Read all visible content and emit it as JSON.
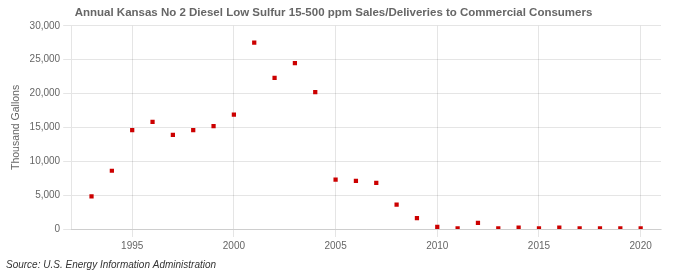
{
  "chart_data": {
    "type": "scatter",
    "title": "Annual Kansas No 2 Diesel Low Sulfur 15-500 ppm Sales/Deliveries to Commercial Consumers",
    "ylabel": "Thousand Gallons",
    "annotations": [
      "Source: U.S. Energy Information Administration"
    ],
    "x": [
      1993,
      1994,
      1995,
      1996,
      1997,
      1998,
      1999,
      2000,
      2001,
      2002,
      2003,
      2004,
      2005,
      2006,
      2007,
      2008,
      2009,
      2010,
      2011,
      2012,
      2013,
      2014,
      2015,
      2016,
      2017,
      2018,
      2019,
      2020
    ],
    "values": [
      4800,
      8600,
      14600,
      15800,
      13900,
      14600,
      15200,
      16900,
      27500,
      22300,
      24500,
      20200,
      7300,
      7100,
      6800,
      3600,
      1600,
      300,
      100,
      900,
      100,
      200,
      100,
      200,
      100,
      100,
      100,
      100
    ],
    "color": "#cc0000",
    "marker": "square",
    "xlim": [
      1992,
      2021
    ],
    "xticks": [
      1995,
      2000,
      2005,
      2010,
      2015,
      2020
    ],
    "ylim": [
      0,
      30000
    ],
    "yticks": [
      0,
      {
        "value": 5000,
        "label": "5,000"
      },
      {
        "value": 10000,
        "label": "10,000"
      },
      {
        "value": 15000,
        "label": "15,000"
      },
      {
        "value": 20000,
        "label": "20,000"
      },
      {
        "value": 25000,
        "label": "25,000"
      },
      {
        "value": 30000,
        "label": "30,000"
      }
    ],
    "grid": true
  }
}
